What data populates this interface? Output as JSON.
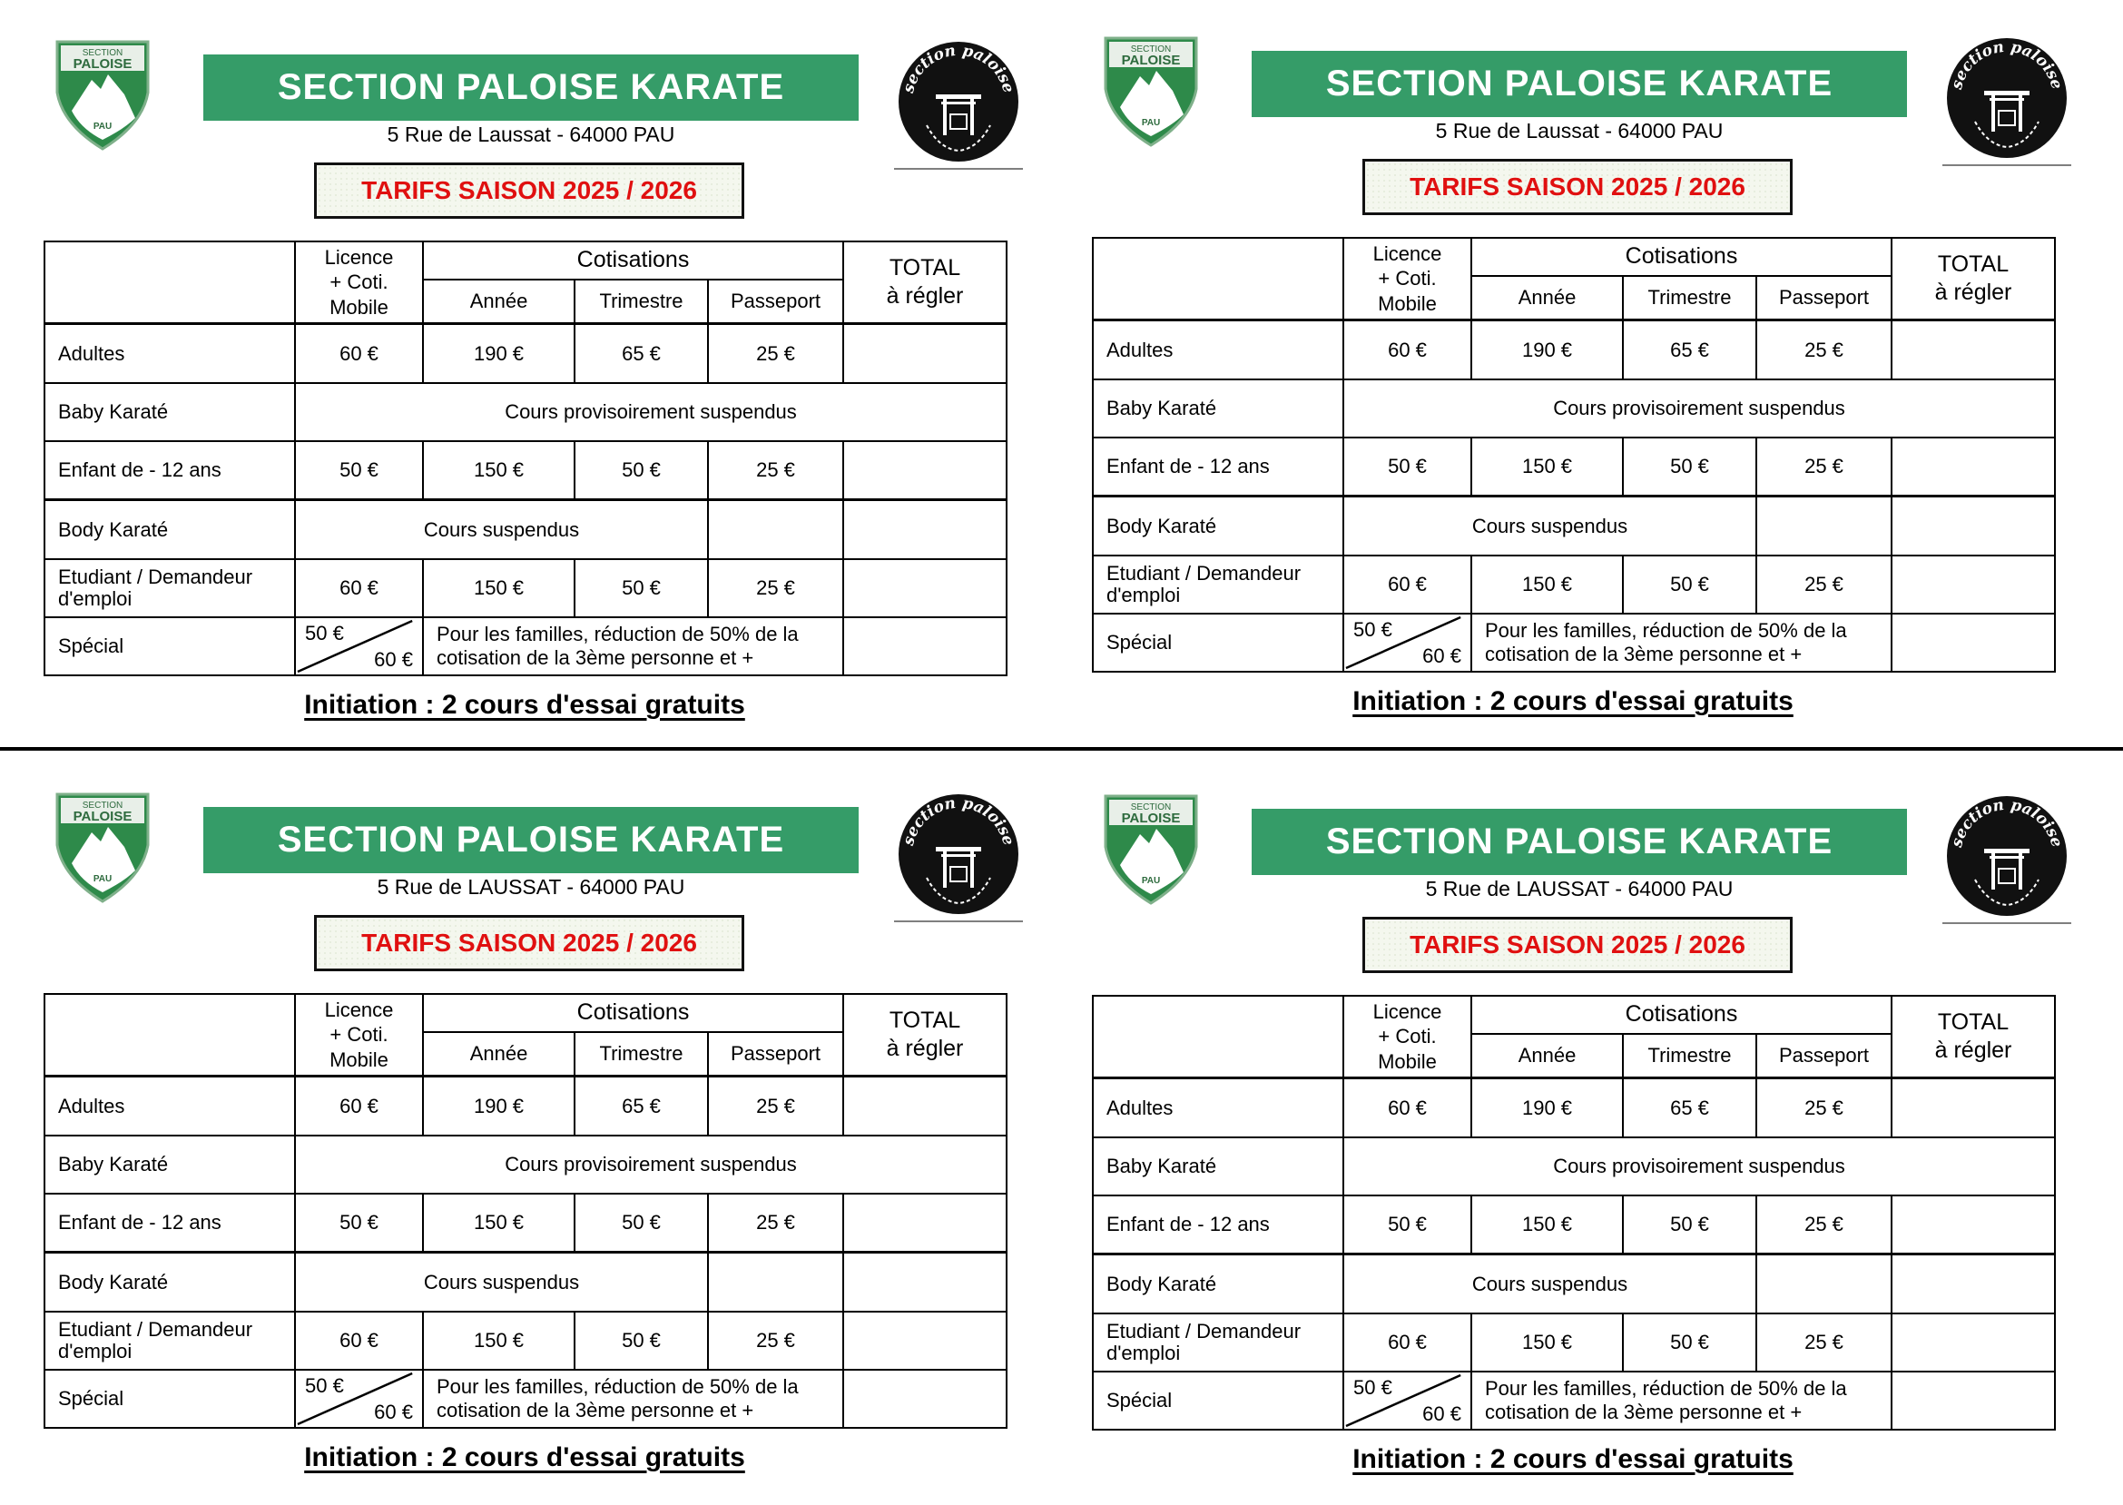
{
  "colors": {
    "banner": "#359c68",
    "tarifs_text": "#e01010"
  },
  "logos": {
    "shield_text": [
      "SECTION",
      "PALOISE",
      "PAU"
    ],
    "seal_text": "section paloise"
  },
  "cards": [
    {
      "title": "SECTION PALOISE KARATE",
      "address": "5 Rue de Laussat - 64000 PAU",
      "tarifs": "TARIFS SAISON 2025 / 2026",
      "headers": {
        "licence": "Licence + Coti. Mobile",
        "cotisations": "Cotisations",
        "annee": "Année",
        "trimestre": "Trimestre",
        "passeport": "Passeport",
        "total": "TOTAL à régler"
      },
      "rows": {
        "adultes": {
          "label": "Adultes",
          "licence": "60 €",
          "annee": "190 €",
          "trimestre": "65 €",
          "passeport": "25 €"
        },
        "baby": {
          "label": "Baby Karaté",
          "note": "Cours provisoirement suspendus"
        },
        "enfant": {
          "label": "Enfant de - 12 ans",
          "licence": "50 €",
          "annee": "150 €",
          "trimestre": "50 €",
          "passeport": "25 €"
        },
        "body": {
          "label": "Body Karaté",
          "note": "Cours suspendus"
        },
        "etudiant": {
          "label": "Etudiant / Demandeur d'emploi",
          "licence": "60 €",
          "annee": "150 €",
          "trimestre": "50 €",
          "passeport": "25 €"
        },
        "special": {
          "label": "Spécial",
          "price_a": "50 €",
          "price_b": "60 €",
          "note": "Pour les familles, réduction de 50% de la cotisation de la 3ème personne et +"
        }
      },
      "initiation": "Initiation : 2 cours d'essai gratuits"
    },
    {
      "title": "SECTION PALOISE KARATE",
      "address": "5 Rue de Laussat - 64000 PAU",
      "tarifs": "TARIFS SAISON 2025 / 2026",
      "headers": {
        "licence": "Licence + Coti. Mobile",
        "cotisations": "Cotisations",
        "annee": "Année",
        "trimestre": "Trimestre",
        "passeport": "Passeport",
        "total": "TOTAL à régler"
      },
      "rows": {
        "adultes": {
          "label": "Adultes",
          "licence": "60 €",
          "annee": "190 €",
          "trimestre": "65 €",
          "passeport": "25 €"
        },
        "baby": {
          "label": "Baby Karaté",
          "note": "Cours provisoirement suspendus"
        },
        "enfant": {
          "label": "Enfant de - 12 ans",
          "licence": "50 €",
          "annee": "150 €",
          "trimestre": "50 €",
          "passeport": "25 €"
        },
        "body": {
          "label": "Body Karaté",
          "note": "Cours suspendus"
        },
        "etudiant": {
          "label": "Etudiant  / Demandeur d'emploi",
          "licence": "60 €",
          "annee": "150 €",
          "trimestre": "50 €",
          "passeport": "25 €"
        },
        "special": {
          "label": "Spécial",
          "price_a": "50 €",
          "price_b": "60 €",
          "note": "Pour les familles, réduction de 50% de la cotisation de la 3ème personne et +"
        }
      },
      "initiation": "Initiation : 2 cours d'essai gratuits"
    },
    {
      "title": "SECTION PALOISE KARATE",
      "address": "5 Rue de LAUSSAT - 64000 PAU",
      "tarifs": "TARIFS SAISON 2025 / 2026",
      "headers": {
        "licence": "Licence + Coti. Mobile",
        "cotisations": "Cotisations",
        "annee": "Année",
        "trimestre": "Trimestre",
        "passeport": "Passeport",
        "total": "TOTAL à régler"
      },
      "rows": {
        "adultes": {
          "label": "Adultes",
          "licence": "60 €",
          "annee": "190 €",
          "trimestre": "65 €",
          "passeport": "25 €"
        },
        "baby": {
          "label": "Baby Karaté",
          "note": "Cours provisoirement suspendus"
        },
        "enfant": {
          "label": "Enfant de - 12 ans",
          "licence": "50 €",
          "annee": "150 €",
          "trimestre": "50 €",
          "passeport": "25 €"
        },
        "body": {
          "label": "Body Karaté",
          "note": "Cours suspendus"
        },
        "etudiant": {
          "label": "Etudiant / Demandeur d'emploi",
          "licence": "60 €",
          "annee": "150 €",
          "trimestre": "50 €",
          "passeport": "25 €"
        },
        "special": {
          "label": "Spécial",
          "price_a": "50 €",
          "price_b": "60 €",
          "note": "Pour les familles, réduction de 50% de la cotisation de la 3ème personne et +"
        }
      },
      "initiation": "Initiation : 2 cours d'essai gratuits"
    },
    {
      "title": "SECTION PALOISE KARATE",
      "address": "5 Rue de LAUSSAT - 64000 PAU",
      "tarifs": "TARIFS SAISON 2025 / 2026",
      "headers": {
        "licence": "Licence + Coti. Mobile",
        "cotisations": "Cotisations",
        "annee": "Année",
        "trimestre": "Trimestre",
        "passeport": "Passeport",
        "total": "TOTAL à régler"
      },
      "rows": {
        "adultes": {
          "label": "Adultes",
          "licence": "60 €",
          "annee": "190 €",
          "trimestre": "65 €",
          "passeport": "25 €"
        },
        "baby": {
          "label": "Baby Karaté",
          "note": "Cours provisoirement suspendus"
        },
        "enfant": {
          "label": "Enfant de - 12 ans",
          "licence": "50 €",
          "annee": "150 €",
          "trimestre": "50 €",
          "passeport": "25 €"
        },
        "body": {
          "label": "Body Karaté",
          "note": "Cours suspendus"
        },
        "etudiant": {
          "label": "Etudiant  / Demandeur d'emploi",
          "licence": "60 €",
          "annee": "150 €",
          "trimestre": "50 €",
          "passeport": "25 €"
        },
        "special": {
          "label": "Spécial",
          "price_a": "50 €",
          "price_b": "60 €",
          "note": "Pour les familles, réduction de 50% de la cotisation de la 3ème personne et +"
        }
      },
      "initiation": "Initiation : 2 cours d'essai gratuits"
    }
  ]
}
